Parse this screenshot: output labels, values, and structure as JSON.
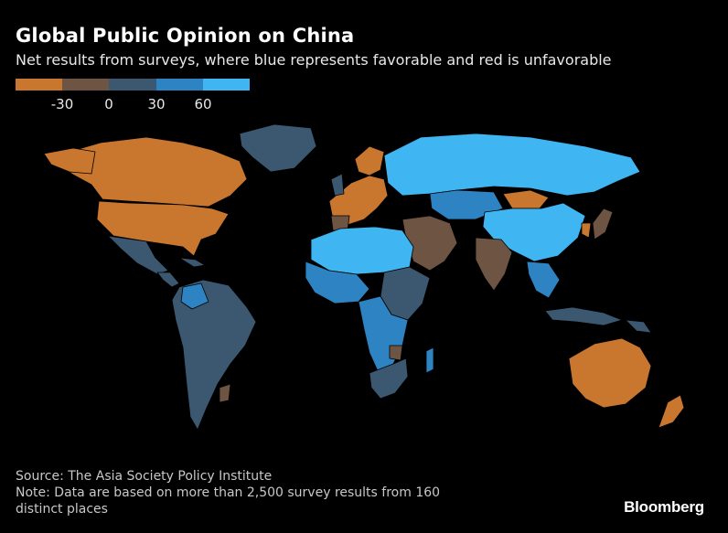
{
  "title": "Global Public Opinion on China",
  "subtitle": "Net results from surveys, where blue represents favorable and red is unfavorable",
  "legend": {
    "colors": [
      "#c9772f",
      "#6e5443",
      "#3c5870",
      "#2e84c2",
      "#3fb6f2"
    ],
    "ticks": [
      "-30",
      "0",
      "30",
      "60"
    ]
  },
  "palette": {
    "strong_unfavorable": "#c9772f",
    "mild_unfavorable": "#6e5443",
    "neutral": "#3c5870",
    "favorable": "#2e84c2",
    "strong_favorable": "#3fb6f2"
  },
  "footer": {
    "source": "Source: The Asia Society Policy Institute",
    "note_line1": "Note: Data are based on more than 2,500 survey results from 160",
    "note_line2": "distinct places"
  },
  "brand": "Bloomberg"
}
